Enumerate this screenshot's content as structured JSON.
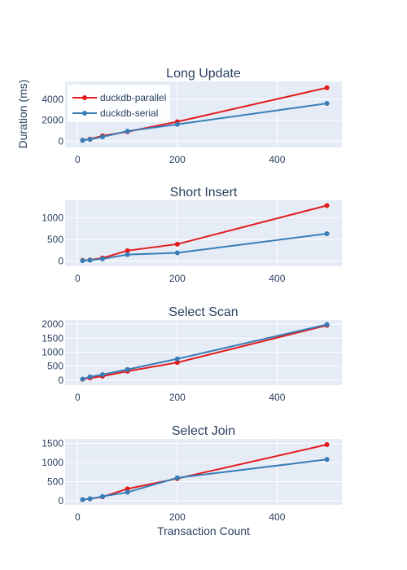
{
  "chart_data": {
    "type": "line",
    "ylabel": "Duration (ms)",
    "xlabel": "Transaction Count",
    "legend": {
      "position": "top-left",
      "entries": [
        "duckdb-parallel",
        "duckdb-serial"
      ]
    },
    "colors": {
      "duckdb-parallel": "#e41a1c",
      "duckdb-serial": "#377eb8",
      "plot_bg": "#e5ecf6",
      "grid": "#ffffff"
    },
    "grid": true,
    "x": [
      10,
      25,
      50,
      100,
      200,
      500
    ],
    "xlim": [
      -25,
      530
    ],
    "xticks": [
      0,
      200,
      400
    ],
    "subplots": [
      {
        "title": "Long Update",
        "ylim": [
          -600,
          5700
        ],
        "yticks": [
          0,
          2000,
          4000
        ],
        "series": [
          {
            "name": "duckdb-parallel",
            "values": [
              80,
              200,
              500,
              900,
              1850,
              5100
            ]
          },
          {
            "name": "duckdb-serial",
            "values": [
              70,
              170,
              400,
              950,
              1600,
              3600
            ]
          }
        ]
      },
      {
        "title": "Short Insert",
        "ylim": [
          -120,
          1400
        ],
        "yticks": [
          0,
          500,
          1000
        ],
        "series": [
          {
            "name": "duckdb-parallel",
            "values": [
              15,
              25,
              70,
              240,
              390,
              1280
            ]
          },
          {
            "name": "duckdb-serial",
            "values": [
              10,
              20,
              50,
              150,
              190,
              630
            ]
          }
        ]
      },
      {
        "title": "Select Scan",
        "ylim": [
          -180,
          2150
        ],
        "yticks": [
          0,
          500,
          1000,
          1500,
          2000
        ],
        "series": [
          {
            "name": "duckdb-parallel",
            "values": [
              30,
              80,
              140,
              320,
              630,
              1960
            ]
          },
          {
            "name": "duckdb-serial",
            "values": [
              40,
              120,
              200,
              380,
              760,
              1990
            ]
          }
        ]
      },
      {
        "title": "Select Join",
        "ylim": [
          -110,
          1620
        ],
        "yticks": [
          0,
          500,
          1000,
          1500
        ],
        "series": [
          {
            "name": "duckdb-parallel",
            "values": [
              25,
              50,
              100,
              310,
              580,
              1470
            ]
          },
          {
            "name": "duckdb-serial",
            "values": [
              25,
              50,
              110,
              220,
              600,
              1080
            ]
          }
        ]
      }
    ]
  }
}
